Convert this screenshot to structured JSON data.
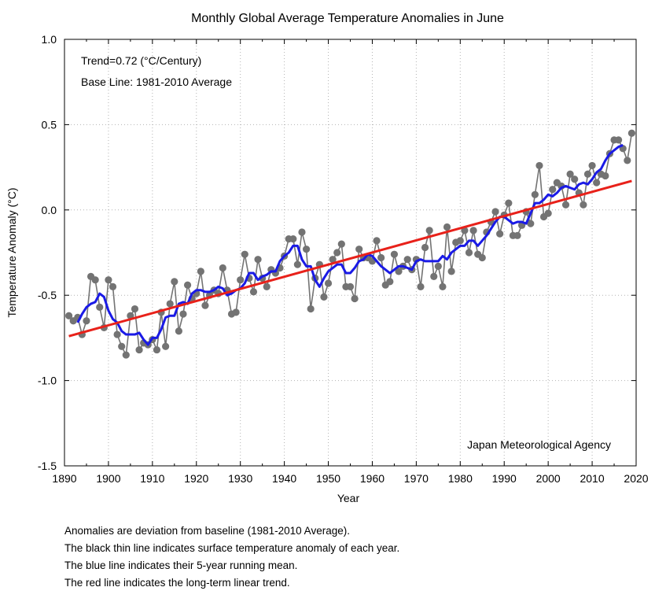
{
  "chart_data": {
    "type": "line",
    "title": "Monthly Global Average Temperature Anomalies in June",
    "xlabel": "Year",
    "ylabel": "Temperature Anomaly (°C)",
    "xlim": [
      1890,
      2020
    ],
    "ylim": [
      -1.5,
      1.0
    ],
    "xticks": [
      1890,
      1900,
      1910,
      1920,
      1930,
      1940,
      1950,
      1960,
      1970,
      1980,
      1990,
      2000,
      2010,
      2020
    ],
    "yticks": [
      -1.5,
      -1.0,
      -0.5,
      0.0,
      0.5,
      1.0
    ],
    "ytick_labels": [
      "-1.5",
      "-1.0",
      "-0.5",
      "0.0",
      "0.5",
      "1.0"
    ],
    "grid": true,
    "annotations": [
      "Trend=0.72 (°C/Century)",
      "Base Line: 1981-2010 Average"
    ],
    "source": "Japan Meteorological Agency",
    "trend": {
      "name": "long-term linear trend",
      "x": [
        1891,
        2019
      ],
      "y": [
        -0.74,
        0.17
      ],
      "color": "#e8211a"
    },
    "running_mean_color": "#1a1ae6",
    "annual_color": "#737373",
    "series": [
      {
        "name": "annual anomaly",
        "x": [
          1891,
          1892,
          1893,
          1894,
          1895,
          1896,
          1897,
          1898,
          1899,
          1900,
          1901,
          1902,
          1903,
          1904,
          1905,
          1906,
          1907,
          1908,
          1909,
          1910,
          1911,
          1912,
          1913,
          1914,
          1915,
          1916,
          1917,
          1918,
          1919,
          1920,
          1921,
          1922,
          1923,
          1924,
          1925,
          1926,
          1927,
          1928,
          1929,
          1930,
          1931,
          1932,
          1933,
          1934,
          1935,
          1936,
          1937,
          1938,
          1939,
          1940,
          1941,
          1942,
          1943,
          1944,
          1945,
          1946,
          1947,
          1948,
          1949,
          1950,
          1951,
          1952,
          1953,
          1954,
          1955,
          1956,
          1957,
          1958,
          1959,
          1960,
          1961,
          1962,
          1963,
          1964,
          1965,
          1966,
          1967,
          1968,
          1969,
          1970,
          1971,
          1972,
          1973,
          1974,
          1975,
          1976,
          1977,
          1978,
          1979,
          1980,
          1981,
          1982,
          1983,
          1984,
          1985,
          1986,
          1987,
          1988,
          1989,
          1990,
          1991,
          1992,
          1993,
          1994,
          1995,
          1996,
          1997,
          1998,
          1999,
          2000,
          2001,
          2002,
          2003,
          2004,
          2005,
          2006,
          2007,
          2008,
          2009,
          2010,
          2011,
          2012,
          2013,
          2014,
          2015,
          2016,
          2017,
          2018,
          2019
        ],
        "values": [
          -0.62,
          -0.65,
          -0.63,
          -0.73,
          -0.65,
          -0.39,
          -0.41,
          -0.57,
          -0.69,
          -0.41,
          -0.45,
          -0.73,
          -0.8,
          -0.85,
          -0.62,
          -0.58,
          -0.82,
          -0.78,
          -0.79,
          -0.76,
          -0.82,
          -0.6,
          -0.8,
          -0.55,
          -0.42,
          -0.71,
          -0.61,
          -0.44,
          -0.52,
          -0.49,
          -0.36,
          -0.56,
          -0.5,
          -0.47,
          -0.49,
          -0.34,
          -0.47,
          -0.61,
          -0.6,
          -0.41,
          -0.26,
          -0.4,
          -0.48,
          -0.29,
          -0.4,
          -0.45,
          -0.35,
          -0.37,
          -0.34,
          -0.27,
          -0.17,
          -0.17,
          -0.32,
          -0.13,
          -0.23,
          -0.58,
          -0.4,
          -0.32,
          -0.51,
          -0.43,
          -0.29,
          -0.25,
          -0.2,
          -0.45,
          -0.45,
          -0.52,
          -0.23,
          -0.28,
          -0.28,
          -0.3,
          -0.18,
          -0.28,
          -0.44,
          -0.42,
          -0.26,
          -0.36,
          -0.33,
          -0.29,
          -0.35,
          -0.29,
          -0.45,
          -0.22,
          -0.12,
          -0.39,
          -0.33,
          -0.45,
          -0.1,
          -0.36,
          -0.19,
          -0.18,
          -0.12,
          -0.25,
          -0.12,
          -0.26,
          -0.28,
          -0.13,
          -0.07,
          -0.01,
          -0.14,
          -0.03,
          0.04,
          -0.15,
          -0.15,
          -0.09,
          -0.01,
          -0.08,
          0.09,
          0.26,
          -0.04,
          -0.02,
          0.12,
          0.16,
          0.14,
          0.03,
          0.21,
          0.18,
          0.1,
          0.03,
          0.21,
          0.26,
          0.16,
          0.21,
          0.2,
          0.33,
          0.41,
          0.41,
          0.36,
          0.29,
          0.45
        ]
      },
      {
        "name": "5-year running mean",
        "x": [
          1893,
          1894,
          1895,
          1896,
          1897,
          1898,
          1899,
          1900,
          1901,
          1902,
          1903,
          1904,
          1905,
          1906,
          1907,
          1908,
          1909,
          1910,
          1911,
          1912,
          1913,
          1914,
          1915,
          1916,
          1917,
          1918,
          1919,
          1920,
          1921,
          1922,
          1923,
          1924,
          1925,
          1926,
          1927,
          1928,
          1929,
          1930,
          1931,
          1932,
          1933,
          1934,
          1935,
          1936,
          1937,
          1938,
          1939,
          1940,
          1941,
          1942,
          1943,
          1944,
          1945,
          1946,
          1947,
          1948,
          1949,
          1950,
          1951,
          1952,
          1953,
          1954,
          1955,
          1956,
          1957,
          1958,
          1959,
          1960,
          1961,
          1962,
          1963,
          1964,
          1965,
          1966,
          1967,
          1968,
          1969,
          1970,
          1971,
          1972,
          1973,
          1974,
          1975,
          1976,
          1977,
          1978,
          1979,
          1980,
          1981,
          1982,
          1983,
          1984,
          1985,
          1986,
          1987,
          1988,
          1989,
          1990,
          1991,
          1992,
          1993,
          1994,
          1995,
          1996,
          1997,
          1998,
          1999,
          2000,
          2001,
          2002,
          2003,
          2004,
          2005,
          2006,
          2007,
          2008,
          2009,
          2010,
          2011,
          2012,
          2013,
          2014,
          2015,
          2016,
          2017
        ],
        "values": [
          -0.66,
          -0.61,
          -0.57,
          -0.55,
          -0.54,
          -0.49,
          -0.51,
          -0.59,
          -0.64,
          -0.66,
          -0.71,
          -0.73,
          -0.73,
          -0.73,
          -0.72,
          -0.76,
          -0.79,
          -0.75,
          -0.75,
          -0.7,
          -0.63,
          -0.62,
          -0.62,
          -0.55,
          -0.54,
          -0.55,
          -0.49,
          -0.47,
          -0.47,
          -0.48,
          -0.48,
          -0.47,
          -0.45,
          -0.46,
          -0.5,
          -0.49,
          -0.47,
          -0.46,
          -0.43,
          -0.37,
          -0.37,
          -0.41,
          -0.39,
          -0.38,
          -0.36,
          -0.36,
          -0.3,
          -0.27,
          -0.25,
          -0.21,
          -0.21,
          -0.29,
          -0.33,
          -0.33,
          -0.41,
          -0.45,
          -0.4,
          -0.36,
          -0.34,
          -0.32,
          -0.32,
          -0.37,
          -0.37,
          -0.34,
          -0.3,
          -0.29,
          -0.26,
          -0.27,
          -0.3,
          -0.33,
          -0.35,
          -0.37,
          -0.35,
          -0.33,
          -0.33,
          -0.34,
          -0.35,
          -0.3,
          -0.29,
          -0.3,
          -0.3,
          -0.3,
          -0.3,
          -0.27,
          -0.29,
          -0.25,
          -0.23,
          -0.21,
          -0.21,
          -0.18,
          -0.18,
          -0.21,
          -0.18,
          -0.15,
          -0.11,
          -0.07,
          -0.04,
          -0.04,
          -0.06,
          -0.08,
          -0.07,
          -0.07,
          -0.08,
          -0.02,
          0.04,
          0.04,
          0.06,
          0.09,
          0.08,
          0.1,
          0.13,
          0.14,
          0.13,
          0.12,
          0.15,
          0.16,
          0.15,
          0.18,
          0.22,
          0.24,
          0.29,
          0.33,
          0.35,
          0.37,
          0.38
        ]
      }
    ]
  },
  "notes": [
    "Anomalies are deviation from baseline (1981-2010 Average).",
    "The black thin line indicates surface temperature anomaly of each year.",
    "The blue line indicates their 5-year running mean.",
    "The red line indicates the long-term linear trend."
  ]
}
